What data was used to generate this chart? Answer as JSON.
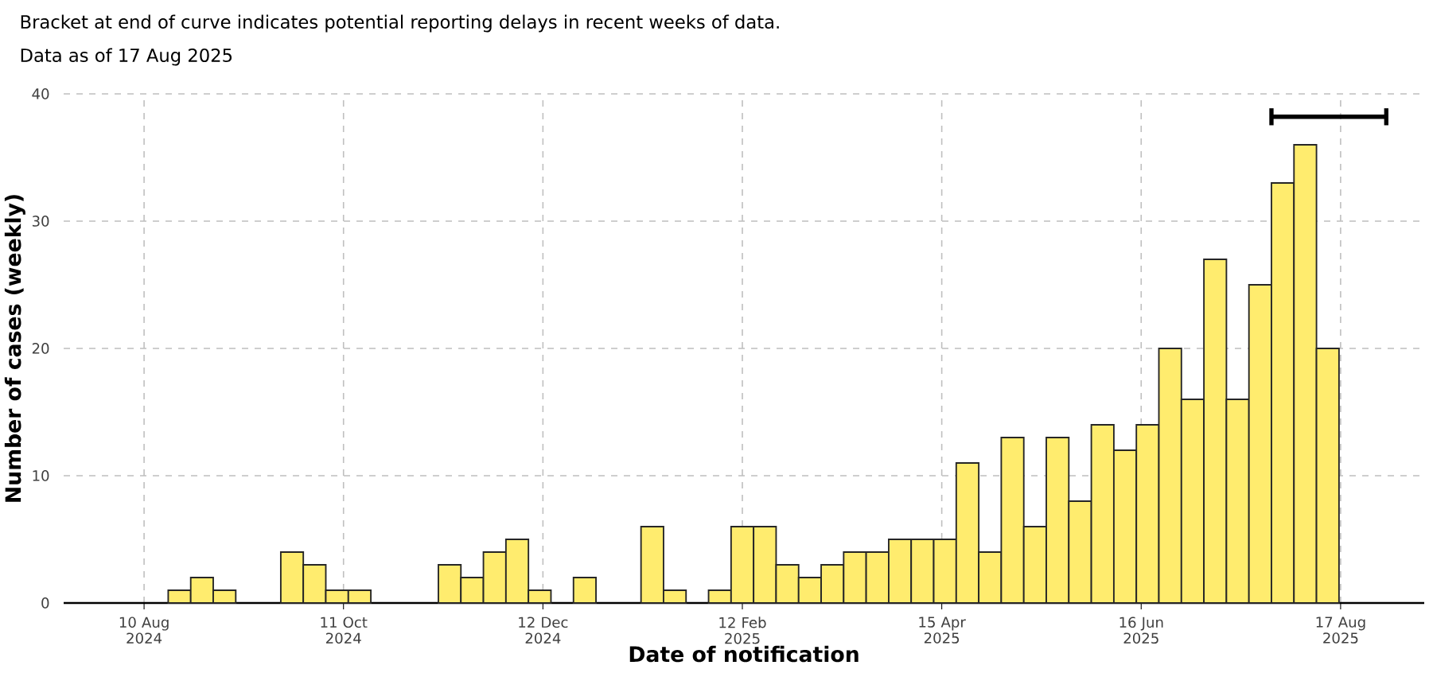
{
  "chart_data": {
    "type": "bar",
    "title": "Bracket at end of curve indicates potential reporting delays in recent weeks of data.",
    "subtitle": "Data as of 17 Aug 2025",
    "xlabel": "Date of notification",
    "ylabel": "Number of cases (weekly)",
    "x": [
      "2024-08-21",
      "2024-08-28",
      "2024-09-04",
      "2024-09-25",
      "2024-10-02",
      "2024-10-09",
      "2024-10-16",
      "2024-11-13",
      "2024-11-20",
      "2024-11-27",
      "2024-12-04",
      "2024-12-11",
      "2024-12-25",
      "2025-01-15",
      "2025-01-22",
      "2025-02-05",
      "2025-02-12",
      "2025-02-19",
      "2025-02-26",
      "2025-03-05",
      "2025-03-12",
      "2025-03-19",
      "2025-03-26",
      "2025-04-02",
      "2025-04-09",
      "2025-04-16",
      "2025-04-23",
      "2025-04-30",
      "2025-05-07",
      "2025-05-14",
      "2025-05-21",
      "2025-05-28",
      "2025-06-04",
      "2025-06-11",
      "2025-06-18",
      "2025-06-25",
      "2025-07-02",
      "2025-07-09",
      "2025-07-16",
      "2025-07-23",
      "2025-07-30",
      "2025-08-06",
      "2025-08-13"
    ],
    "values": [
      1,
      2,
      1,
      4,
      3,
      1,
      1,
      3,
      2,
      4,
      5,
      1,
      2,
      6,
      1,
      1,
      6,
      6,
      3,
      2,
      3,
      4,
      4,
      5,
      5,
      5,
      11,
      4,
      13,
      6,
      13,
      8,
      14,
      12,
      14,
      20,
      16,
      27,
      16,
      25,
      33,
      36,
      20
    ],
    "color": "#ffec6e",
    "xlim": [
      "2024-07-16",
      "2025-09-12"
    ],
    "xticks": [
      {
        "value": "2024-08-10",
        "label": "10 Aug 2024"
      },
      {
        "value": "2024-10-11",
        "label": "11 Oct 2024"
      },
      {
        "value": "2024-12-12",
        "label": "12 Dec 2024"
      },
      {
        "value": "2025-02-12",
        "label": "12 Feb 2025"
      },
      {
        "value": "2025-04-15",
        "label": "15 Apr 2025"
      },
      {
        "value": "2025-06-16",
        "label": "16 Jun 2025"
      },
      {
        "value": "2025-08-17",
        "label": "17 Aug 2025"
      }
    ],
    "ylim": [
      0,
      40
    ],
    "yticks": [
      0,
      10,
      20,
      30,
      40
    ],
    "grid": true
  }
}
